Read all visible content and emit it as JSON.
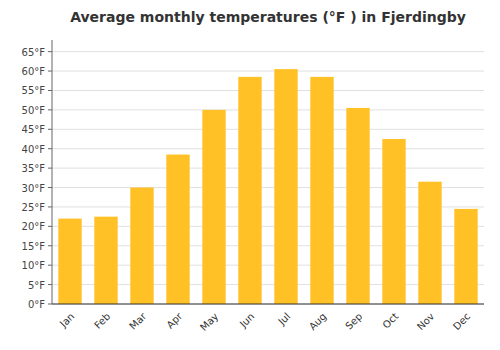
{
  "chart_data": {
    "type": "bar",
    "title": "Average monthly temperatures (°F ) in Fjerdingby",
    "categories": [
      "Jan",
      "Feb",
      "Mar",
      "Apr",
      "May",
      "Jun",
      "Jul",
      "Aug",
      "Sep",
      "Oct",
      "Nov",
      "Dec"
    ],
    "values": [
      22,
      22.5,
      30,
      38.5,
      50,
      58.5,
      60.5,
      58.5,
      50.5,
      42.5,
      31.5,
      24.5
    ],
    "color": "#FFC125",
    "ylim": [
      0,
      68
    ],
    "yticks": [
      {
        "value": 0,
        "label": "0°F"
      },
      {
        "value": 5,
        "label": "5°F"
      },
      {
        "value": 10,
        "label": "10°F"
      },
      {
        "value": 15,
        "label": "15°F"
      },
      {
        "value": 20,
        "label": "20°F"
      },
      {
        "value": 25,
        "label": "25°F"
      },
      {
        "value": 30,
        "label": "30°F"
      },
      {
        "value": 35,
        "label": "35°F"
      },
      {
        "value": 40,
        "label": "40°F"
      },
      {
        "value": 45,
        "label": "45°F"
      },
      {
        "value": 50,
        "label": "50°F"
      },
      {
        "value": 55,
        "label": "55°F"
      },
      {
        "value": 60,
        "label": "60°F"
      },
      {
        "value": 65,
        "label": "65°F"
      }
    ],
    "grid": true
  }
}
